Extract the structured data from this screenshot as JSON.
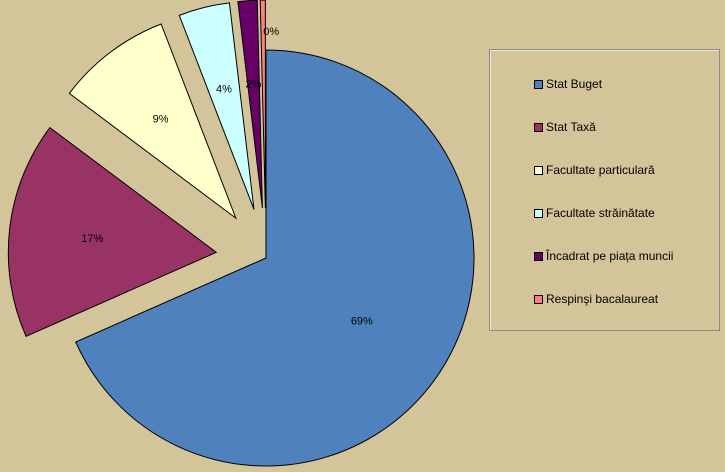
{
  "chart_data": {
    "type": "pie",
    "categories": [
      "Stat Buget",
      "Stat Taxă",
      "Facultate particulară",
      "Facultate străinătate",
      "Încadrat pe piața muncii",
      "Respinşi bacalaureat"
    ],
    "values": [
      69,
      17,
      9,
      4,
      1.5,
      0.4
    ],
    "data_labels": [
      "69%",
      "17%",
      "9%",
      "4%",
      "2%",
      "0%"
    ],
    "colors": [
      "#4f81bd",
      "#993366",
      "#ffffcc",
      "#ccffff",
      "#660066",
      "#ff8080"
    ],
    "exploded": true,
    "title": "",
    "legend_position": "right"
  }
}
